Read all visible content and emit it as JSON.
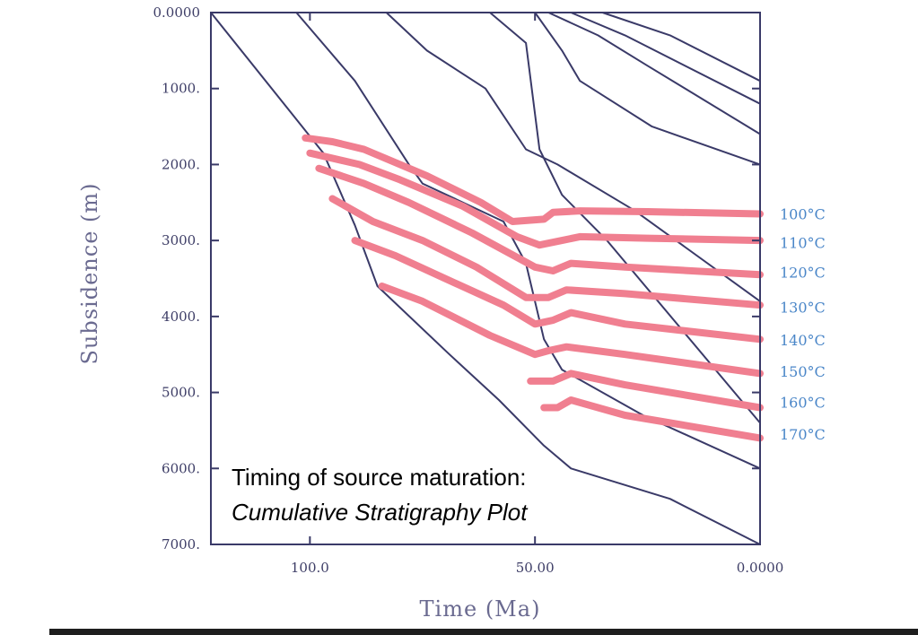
{
  "chart_data": {
    "type": "line",
    "title": "",
    "xlabel": "Time (Ma)",
    "ylabel": "Subsidence (m)",
    "xlim": [
      122,
      0
    ],
    "ylim": [
      0,
      7000
    ],
    "x_ticks": [
      {
        "value": 100,
        "label": "100.0"
      },
      {
        "value": 50,
        "label": "50.00"
      },
      {
        "value": 0,
        "label": "0.0000"
      }
    ],
    "y_ticks": [
      {
        "value": 0,
        "label": "0.0000"
      },
      {
        "value": 1000,
        "label": "1000."
      },
      {
        "value": 2000,
        "label": "2000."
      },
      {
        "value": 3000,
        "label": "3000."
      },
      {
        "value": 4000,
        "label": "4000."
      },
      {
        "value": 5000,
        "label": "5000."
      },
      {
        "value": 6000,
        "label": "6000."
      },
      {
        "value": 7000,
        "label": "7000."
      }
    ],
    "burial_lines": [
      {
        "points": [
          [
            122,
            0
          ],
          [
            97,
            1850
          ],
          [
            90,
            2800
          ],
          [
            85,
            3600
          ],
          [
            69,
            4500
          ],
          [
            58,
            5100
          ],
          [
            48,
            5700
          ],
          [
            42,
            6000
          ],
          [
            20,
            6400
          ],
          [
            0,
            7000
          ]
        ]
      },
      {
        "points": [
          [
            103,
            0
          ],
          [
            90,
            900
          ],
          [
            78,
            2000
          ],
          [
            75,
            2250
          ],
          [
            57,
            2750
          ],
          [
            52,
            3300
          ],
          [
            48,
            4300
          ],
          [
            44,
            4700
          ],
          [
            26,
            5300
          ],
          [
            0,
            6000
          ]
        ]
      },
      {
        "points": [
          [
            83,
            0
          ],
          [
            74,
            500
          ],
          [
            61,
            1000
          ],
          [
            52,
            1800
          ],
          [
            45,
            2000
          ],
          [
            28,
            2600
          ],
          [
            0,
            3800
          ]
        ]
      },
      {
        "points": [
          [
            60,
            0
          ],
          [
            52,
            400
          ],
          [
            49,
            1800
          ],
          [
            44,
            2400
          ],
          [
            34,
            3000
          ],
          [
            0,
            5400
          ]
        ]
      },
      {
        "points": [
          [
            50,
            0
          ],
          [
            44,
            500
          ],
          [
            40,
            900
          ],
          [
            24,
            1500
          ],
          [
            0,
            2000
          ]
        ]
      },
      {
        "points": [
          [
            47,
            0
          ],
          [
            36,
            300
          ],
          [
            25,
            700
          ],
          [
            0,
            1600
          ]
        ]
      },
      {
        "points": [
          [
            42,
            0
          ],
          [
            30,
            300
          ],
          [
            0,
            1200
          ]
        ]
      },
      {
        "points": [
          [
            35,
            0
          ],
          [
            20,
            300
          ],
          [
            0,
            900
          ]
        ]
      }
    ],
    "isotherms": [
      {
        "name": "100°C",
        "points": [
          [
            101,
            1650
          ],
          [
            95,
            1700
          ],
          [
            88,
            1800
          ],
          [
            74,
            2150
          ],
          [
            62,
            2500
          ],
          [
            55,
            2750
          ],
          [
            48,
            2720
          ],
          [
            46,
            2630
          ],
          [
            40,
            2610
          ],
          [
            25,
            2620
          ],
          [
            0,
            2650
          ]
        ]
      },
      {
        "points": [
          [
            100,
            1850
          ],
          [
            89,
            2000
          ],
          [
            80,
            2200
          ],
          [
            66,
            2550
          ],
          [
            54,
            2950
          ],
          [
            49,
            3060
          ],
          [
            44,
            3000
          ],
          [
            40,
            2950
          ],
          [
            25,
            2970
          ],
          [
            0,
            3000
          ]
        ]
      },
      {
        "points": [
          [
            98,
            2050
          ],
          [
            88,
            2250
          ],
          [
            78,
            2500
          ],
          [
            64,
            2900
          ],
          [
            50,
            3350
          ],
          [
            46,
            3400
          ],
          [
            42,
            3300
          ],
          [
            30,
            3350
          ],
          [
            0,
            3450
          ]
        ]
      },
      {
        "points": [
          [
            95,
            2450
          ],
          [
            86,
            2750
          ],
          [
            75,
            3000
          ],
          [
            63,
            3350
          ],
          [
            52,
            3750
          ],
          [
            47,
            3750
          ],
          [
            43,
            3650
          ],
          [
            30,
            3700
          ],
          [
            0,
            3850
          ]
        ]
      },
      {
        "points": [
          [
            90,
            3000
          ],
          [
            81,
            3200
          ],
          [
            70,
            3500
          ],
          [
            57,
            3850
          ],
          [
            50,
            4100
          ],
          [
            46,
            4050
          ],
          [
            42,
            3950
          ],
          [
            30,
            4100
          ],
          [
            0,
            4300
          ]
        ]
      },
      {
        "points": [
          [
            84,
            3600
          ],
          [
            75,
            3800
          ],
          [
            60,
            4250
          ],
          [
            50,
            4500
          ],
          [
            47,
            4450
          ],
          [
            43,
            4400
          ],
          [
            30,
            4500
          ],
          [
            0,
            4750
          ]
        ]
      },
      {
        "points": [
          [
            51,
            4850
          ],
          [
            46,
            4850
          ],
          [
            42,
            4750
          ],
          [
            30,
            4900
          ],
          [
            0,
            5200
          ]
        ]
      },
      {
        "points": [
          [
            48,
            5200
          ],
          [
            45,
            5200
          ],
          [
            42,
            5100
          ],
          [
            30,
            5300
          ],
          [
            0,
            5600
          ]
        ]
      }
    ],
    "isotherm_labels": [
      {
        "label": "100°C",
        "depth": 2650
      },
      {
        "label": "110°C",
        "depth": 3030
      },
      {
        "label": "120°C",
        "depth": 3420
      },
      {
        "label": "130°C",
        "depth": 3880
      },
      {
        "label": "140°C",
        "depth": 4310
      },
      {
        "label": "150°C",
        "depth": 4720
      },
      {
        "label": "160°C",
        "depth": 5130
      },
      {
        "label": "170°C",
        "depth": 5550
      }
    ],
    "annotation": {
      "line1": "Timing of source maturation:",
      "line2": "Cumulative Stratigraphy Plot"
    },
    "colors": {
      "burial": "#3a3a68",
      "isotherm": "#f07f90",
      "isotherm_label": "#4a86c8",
      "axis": "#3a3a68"
    }
  }
}
